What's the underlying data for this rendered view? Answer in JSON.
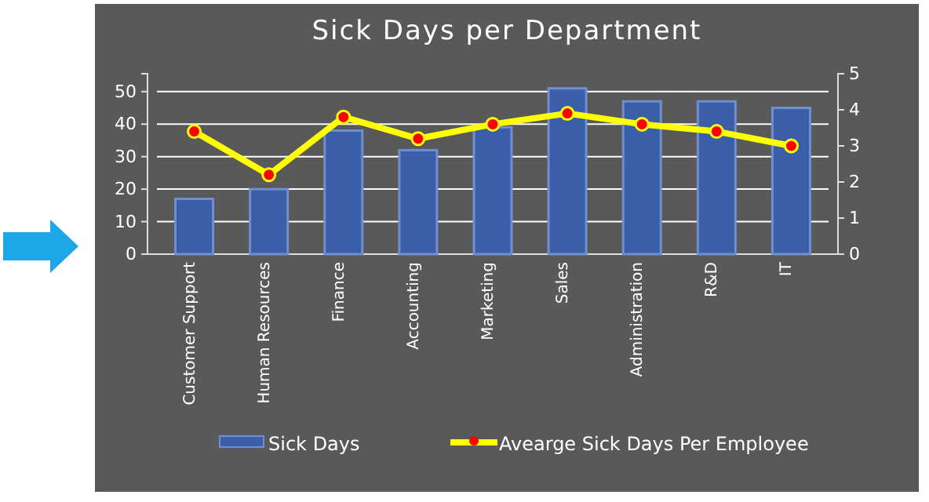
{
  "chart_data": {
    "type": "bar",
    "title": "Sick Days per Department",
    "categories": [
      "Customer Support",
      "Human Resources",
      "Finance",
      "Accounting",
      "Marketing",
      "Sales",
      "Administration",
      "R&D",
      "IT"
    ],
    "series": [
      {
        "name": "Sick Days",
        "color": "#3a5fa8",
        "values": [
          17,
          20,
          38,
          32,
          39,
          51,
          47,
          47,
          45
        ]
      },
      {
        "name": "Avearge Sick Days Per Employee",
        "type": "line",
        "axis": "y2",
        "color": "#ffff00",
        "marker": "circle",
        "values": [
          3.4,
          2.2,
          3.8,
          3.2,
          3.6,
          3.9,
          3.6,
          3.4,
          3.0
        ]
      }
    ],
    "ylim": [
      0,
      55.5
    ],
    "yticks": [
      0,
      10,
      20,
      30,
      40,
      50
    ],
    "y2lim": [
      0,
      5
    ],
    "y2ticks": [
      0,
      1,
      2,
      3,
      4,
      5
    ],
    "grid": "y",
    "legend": "bottom"
  }
}
